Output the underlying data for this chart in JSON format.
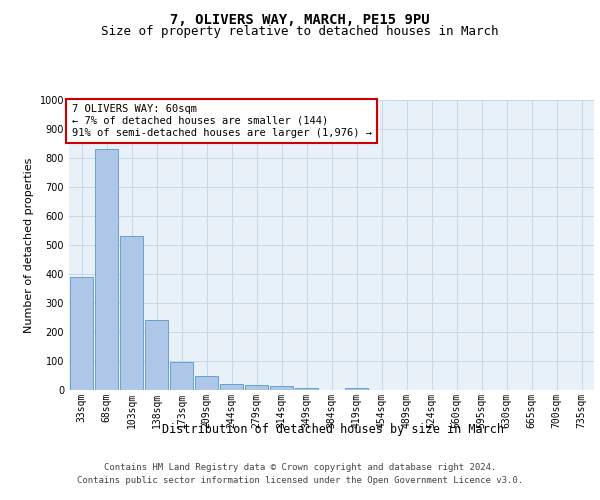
{
  "title": "7, OLIVERS WAY, MARCH, PE15 9PU",
  "subtitle": "Size of property relative to detached houses in March",
  "xlabel": "Distribution of detached houses by size in March",
  "ylabel": "Number of detached properties",
  "categories": [
    "33sqm",
    "68sqm",
    "103sqm",
    "138sqm",
    "173sqm",
    "209sqm",
    "244sqm",
    "279sqm",
    "314sqm",
    "349sqm",
    "384sqm",
    "419sqm",
    "454sqm",
    "489sqm",
    "524sqm",
    "560sqm",
    "595sqm",
    "630sqm",
    "665sqm",
    "700sqm",
    "735sqm"
  ],
  "values": [
    390,
    830,
    530,
    240,
    95,
    50,
    20,
    17,
    14,
    8,
    0,
    8,
    0,
    0,
    0,
    0,
    0,
    0,
    0,
    0,
    0
  ],
  "bar_color": "#aec6e8",
  "bar_edge_color": "#5599cc",
  "ylim": [
    0,
    1000
  ],
  "yticks": [
    0,
    100,
    200,
    300,
    400,
    500,
    600,
    700,
    800,
    900,
    1000
  ],
  "annotation_box_text": "7 OLIVERS WAY: 60sqm\n← 7% of detached houses are smaller (144)\n91% of semi-detached houses are larger (1,976) →",
  "annotation_box_color": "#ffffff",
  "annotation_box_edge_color": "#cc0000",
  "grid_color": "#c8d8ea",
  "plot_bg_color": "#e8f0f8",
  "footer_line1": "Contains HM Land Registry data © Crown copyright and database right 2024.",
  "footer_line2": "Contains public sector information licensed under the Open Government Licence v3.0.",
  "title_fontsize": 10,
  "subtitle_fontsize": 9,
  "annotation_fontsize": 7.5,
  "axis_label_fontsize": 8.5,
  "ylabel_fontsize": 8,
  "tick_fontsize": 7,
  "footer_fontsize": 6.5
}
